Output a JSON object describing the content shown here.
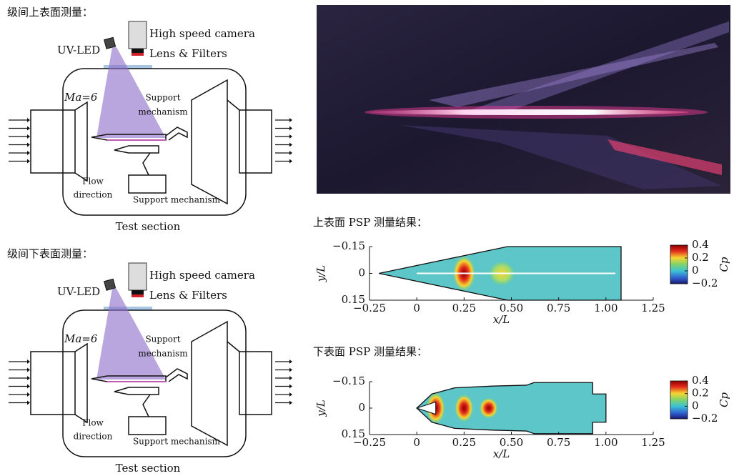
{
  "diagrams": [
    {
      "heading": "级间上表面测量：",
      "camera": "High speed camera",
      "lens": "Lens & Filters",
      "led": "UV-LED",
      "mach": "Ma=6",
      "support_top": [
        "Support",
        "mechanism"
      ],
      "flow": [
        "Flow",
        "direction"
      ],
      "support_bottom": "Support mechanism",
      "caption": "Test section"
    },
    {
      "heading": "级间下表面测量：",
      "camera": "High speed camera",
      "lens": "Lens & Filters",
      "led": "UV-LED",
      "mach": "Ma=6",
      "support_top": [
        "Support",
        "mechanism"
      ],
      "flow": [
        "Flow",
        "direction"
      ],
      "support_bottom": "Support mechanism",
      "caption": "Test section"
    }
  ],
  "plots": [
    {
      "heading": "上表面 PSP 测量结果：",
      "xlabel": "x/L",
      "ylabel": "y/L",
      "xlim": [
        -0.25,
        1.25
      ],
      "xticks": [
        {
          "value": -0.25,
          "label": "−0.25"
        },
        0,
        0.25,
        {
          "value": 0.5,
          "label": "0.50"
        },
        0.75,
        {
          "value": 1,
          "label": "1.00"
        },
        1.25
      ],
      "ylim": [
        -0.15,
        0.15
      ],
      "y_inverted": true,
      "yticks": [
        {
          "value": -0.15,
          "label": "−0.15"
        },
        0,
        0.15
      ],
      "colorbar": {
        "label": "Cp",
        "lim": [
          -0.2,
          0.4
        ],
        "ticks": [
          0.4,
          0.2,
          0,
          {
            "value": -0.2,
            "label": "−0.2"
          }
        ]
      }
    },
    {
      "heading": "下表面 PSP 测量结果：",
      "xlabel": "x/L",
      "ylabel": "y/L",
      "xlim": [
        -0.25,
        1.25
      ],
      "xticks": [
        {
          "value": -0.25,
          "label": "−0.25"
        },
        0,
        0.25,
        {
          "value": 0.5,
          "label": "0.50"
        },
        0.75,
        {
          "value": 1,
          "label": "1.00"
        },
        1.25
      ],
      "ylim": [
        -0.15,
        0.15
      ],
      "y_inverted": true,
      "yticks": [
        {
          "value": -0.15,
          "label": "−0.15"
        },
        0,
        0.15
      ],
      "colorbar": {
        "label": "Cp",
        "lim": [
          -0.2,
          0.4
        ],
        "ticks": [
          0.4,
          0.2,
          0,
          {
            "value": -0.2,
            "label": "−0.2"
          }
        ]
      }
    }
  ]
}
